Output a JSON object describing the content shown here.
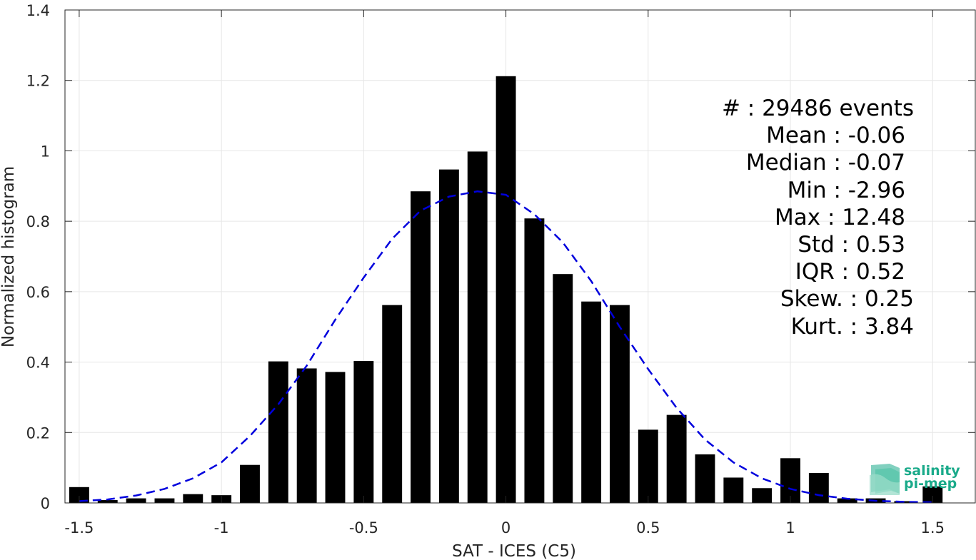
{
  "chart_data": {
    "type": "bar",
    "xlabel": "SAT - ICES (C5)",
    "ylabel": "Normalized histogram",
    "xlim": [
      -1.55,
      1.65
    ],
    "ylim": [
      0,
      1.4
    ],
    "xticks": [
      -1.5,
      -1,
      -0.5,
      0,
      0.5,
      1,
      1.5
    ],
    "xtick_labels": [
      "-1.5",
      "-1",
      "-0.5",
      "0",
      "0.5",
      "1",
      "1.5"
    ],
    "yticks": [
      0,
      0.2,
      0.4,
      0.6,
      0.8,
      1,
      1.2,
      1.4
    ],
    "ytick_labels": [
      "0",
      "0.2",
      "0.4",
      "0.6",
      "0.8",
      "1",
      "1.2",
      "1.4"
    ],
    "grid": true,
    "bar_color": "#000000",
    "bar_width": 0.07,
    "series": [
      {
        "x": [
          -1.5,
          -1.4,
          -1.3,
          -1.2,
          -1.1,
          -1.0,
          -0.9,
          -0.8,
          -0.7,
          -0.6,
          -0.5,
          -0.4,
          -0.3,
          -0.2,
          -0.1,
          0.0,
          0.1,
          0.2,
          0.3,
          0.4,
          0.5,
          0.6,
          0.7,
          0.8,
          0.9,
          1.0,
          1.1,
          1.2,
          1.3,
          1.4,
          1.5
        ],
        "values": [
          0.045,
          0.008,
          0.013,
          0.013,
          0.025,
          0.022,
          0.108,
          0.402,
          0.382,
          0.372,
          0.403,
          0.562,
          0.885,
          0.947,
          0.998,
          1.212,
          0.808,
          0.65,
          0.572,
          0.562,
          0.208,
          0.25,
          0.138,
          0.072,
          0.042,
          0.127,
          0.085,
          0.013,
          0.013,
          0.005,
          0.047
        ]
      }
    ],
    "fit_curve": {
      "style": "dashed",
      "color": "#0000dd",
      "x": [
        -1.5,
        -1.4,
        -1.3,
        -1.2,
        -1.1,
        -1.0,
        -0.9,
        -0.8,
        -0.7,
        -0.6,
        -0.5,
        -0.4,
        -0.3,
        -0.2,
        -0.1,
        0.0,
        0.1,
        0.2,
        0.3,
        0.4,
        0.5,
        0.6,
        0.7,
        0.8,
        0.9,
        1.0,
        1.1,
        1.2,
        1.3,
        1.4,
        1.5
      ],
      "y": [
        0.005,
        0.01,
        0.021,
        0.04,
        0.07,
        0.115,
        0.19,
        0.28,
        0.39,
        0.52,
        0.64,
        0.75,
        0.83,
        0.87,
        0.885,
        0.875,
        0.82,
        0.74,
        0.63,
        0.5,
        0.38,
        0.27,
        0.18,
        0.115,
        0.07,
        0.04,
        0.022,
        0.012,
        0.006,
        0.003,
        0.002
      ]
    }
  },
  "stats": [
    "#  : 29486 events",
    "Mean : -0.06",
    "Median : -0.07",
    "Min : -2.96",
    "Max : 12.48",
    "Std : 0.53",
    "IQR : 0.52",
    "Skew. : 0.25",
    "Kurt. : 3.84"
  ],
  "logo": {
    "line1": "salinity",
    "line2": "pi-mep",
    "color": "#1aaa8a"
  }
}
